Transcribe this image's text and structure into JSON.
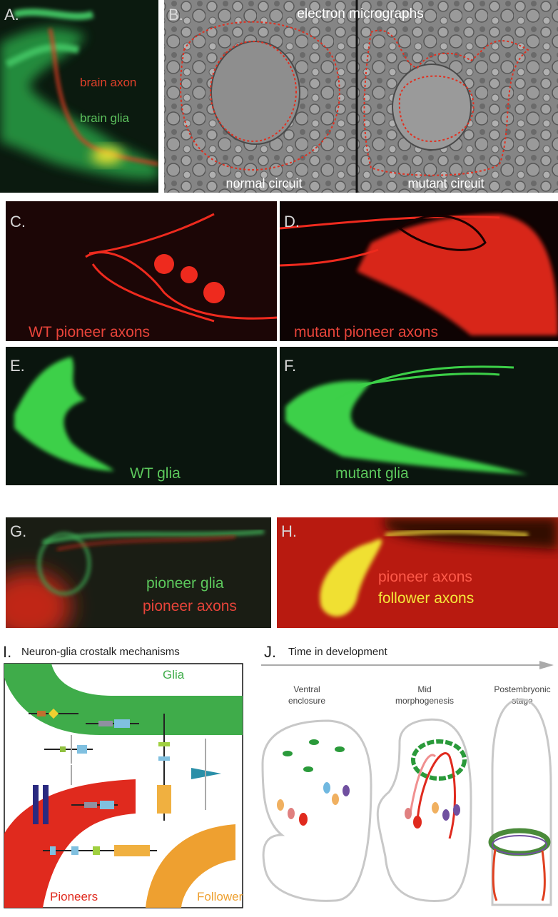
{
  "panels": {
    "A": {
      "letter": "A.",
      "labels": [
        "brain axon",
        "brain glia"
      ]
    },
    "B": {
      "letter": "B.",
      "title": "electron micrographs",
      "labels": [
        "normal circuit",
        "mutant circuit"
      ]
    },
    "C": {
      "letter": "C.",
      "labels": [
        "WT pioneer axons"
      ]
    },
    "D": {
      "letter": "D.",
      "labels": [
        "mutant pioneer axons"
      ]
    },
    "E": {
      "letter": "E.",
      "labels": [
        "WT glia"
      ]
    },
    "F": {
      "letter": "F.",
      "labels": [
        "mutant glia"
      ]
    },
    "G": {
      "letter": "G.",
      "labels": [
        "pioneer glia",
        "pioneer axons"
      ]
    },
    "H": {
      "letter": "H.",
      "labels": [
        "pioneer axons",
        "follower axons"
      ]
    },
    "I": {
      "letter": "I.",
      "title": "Neuron-glia crostalk mechanisms",
      "labels": [
        "Glia",
        "Pioneers",
        "Follower"
      ]
    },
    "J": {
      "letter": "J.",
      "title": "Time in development",
      "stages": [
        [
          "Ventral",
          "enclosure"
        ],
        [
          "Mid",
          "morphogenesis"
        ],
        [
          "Postembryonic",
          "stage"
        ]
      ]
    }
  }
}
